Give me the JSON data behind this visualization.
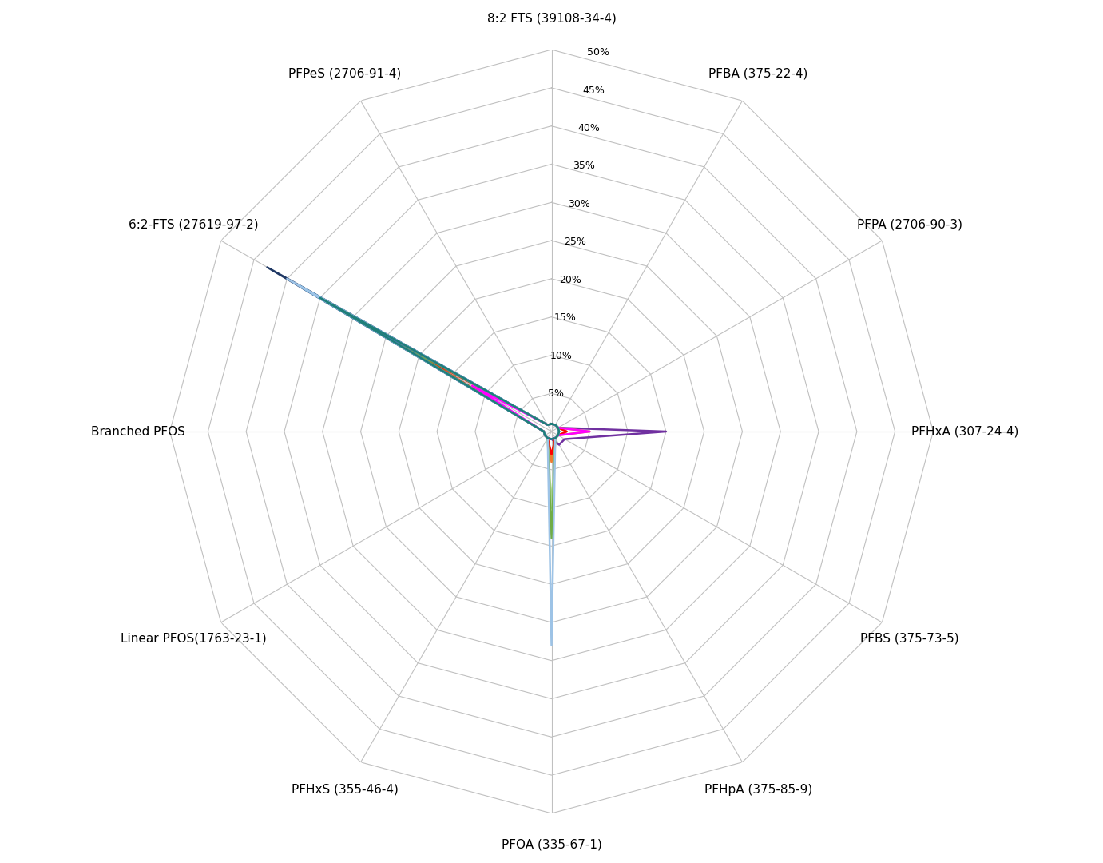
{
  "categories": [
    "8:2 FTS (39108-34-4)",
    "PFBA (375-22-4)",
    "PFPA (2706-90-3)",
    "PFHxA (307-24-4)",
    "PFBS (375-73-5)",
    "PFHpA (375-85-9)",
    "PFOA (335-67-1)",
    "PFHxS (355-46-4)",
    "Linear PFOS(1763-23-1)",
    "Branched PFOS",
    "6:2-FTS (27619-97-2)",
    "PFPeS (2706-91-4)"
  ],
  "r_max": 0.5,
  "r_ticks": [
    0.05,
    0.1,
    0.15,
    0.2,
    0.25,
    0.3,
    0.35,
    0.4,
    0.45,
    0.5
  ],
  "r_tick_labels": [
    "5%",
    "10%",
    "15%",
    "20%",
    "25%",
    "30%",
    "35%",
    "40%",
    "45%",
    "50%"
  ],
  "series": [
    {
      "name": "purple_wide",
      "color": "#7030A0",
      "values": [
        0.01,
        0.01,
        0.01,
        0.15,
        0.02,
        0.02,
        0.01,
        0.01,
        0.01,
        0.01,
        0.38,
        0.01
      ]
    },
    {
      "name": "dark_blue",
      "color": "#1F3864",
      "values": [
        0.01,
        0.01,
        0.01,
        0.01,
        0.01,
        0.01,
        0.01,
        0.01,
        0.01,
        0.01,
        0.43,
        0.01
      ]
    },
    {
      "name": "teal",
      "color": "#00B0F0",
      "values": [
        0.01,
        0.01,
        0.01,
        0.01,
        0.01,
        0.01,
        0.01,
        0.01,
        0.01,
        0.01,
        0.38,
        0.01
      ]
    },
    {
      "name": "orange",
      "color": "#ED7D31",
      "values": [
        0.01,
        0.01,
        0.01,
        0.05,
        0.01,
        0.01,
        0.04,
        0.01,
        0.01,
        0.01,
        0.28,
        0.01
      ]
    },
    {
      "name": "light_green",
      "color": "#A9D18E",
      "values": [
        0.01,
        0.01,
        0.01,
        0.02,
        0.01,
        0.01,
        0.1,
        0.01,
        0.01,
        0.01,
        0.27,
        0.01
      ]
    },
    {
      "name": "red",
      "color": "#FF0000",
      "values": [
        0.01,
        0.01,
        0.01,
        0.02,
        0.01,
        0.01,
        0.03,
        0.01,
        0.01,
        0.01,
        0.22,
        0.01
      ]
    },
    {
      "name": "dark_green",
      "color": "#70AD47",
      "values": [
        0.01,
        0.01,
        0.01,
        0.01,
        0.01,
        0.01,
        0.14,
        0.01,
        0.01,
        0.01,
        0.25,
        0.01
      ]
    },
    {
      "name": "magenta",
      "color": "#FF00FF",
      "values": [
        0.01,
        0.01,
        0.01,
        0.05,
        0.01,
        0.01,
        0.01,
        0.01,
        0.01,
        0.01,
        0.12,
        0.01
      ]
    },
    {
      "name": "medium_blue",
      "color": "#4472C4",
      "values": [
        0.01,
        0.01,
        0.01,
        0.01,
        0.01,
        0.01,
        0.01,
        0.01,
        0.01,
        0.01,
        0.32,
        0.01
      ]
    },
    {
      "name": "light_blue",
      "color": "#9DC3E6",
      "values": [
        0.01,
        0.01,
        0.01,
        0.01,
        0.01,
        0.01,
        0.28,
        0.01,
        0.01,
        0.01,
        0.4,
        0.01
      ]
    },
    {
      "name": "dark_teal",
      "color": "#1F7E79",
      "values": [
        0.01,
        0.01,
        0.01,
        0.01,
        0.01,
        0.01,
        0.01,
        0.01,
        0.01,
        0.01,
        0.35,
        0.01
      ]
    }
  ],
  "background_color": "#FFFFFF",
  "grid_color": "#C0C0C0",
  "label_color": "#000000",
  "tick_label_color": "#000000",
  "label_fontsize": 11,
  "tick_fontsize": 9
}
